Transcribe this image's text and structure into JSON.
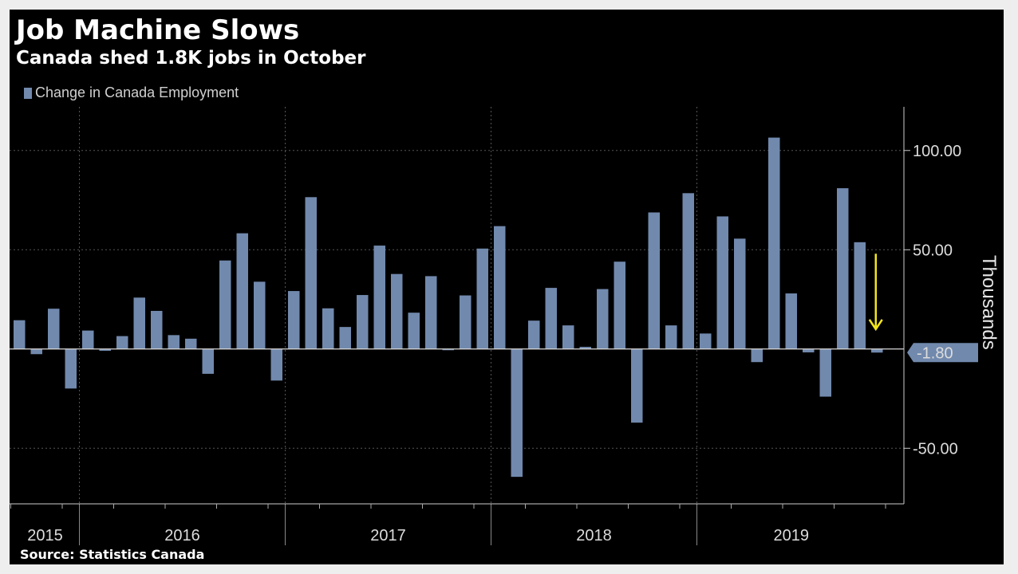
{
  "title": "Job Machine Slows",
  "subtitle": "Canada shed 1.8K jobs in October",
  "source": "Source: Statistics Canada",
  "colors": {
    "bar": "#7189ad",
    "background": "#000000",
    "grid": "#555555",
    "arrow": "#f2e51c",
    "text": "#dcdcdc"
  },
  "chart_data": {
    "type": "bar",
    "ylabel": "Thousands",
    "ylim": [
      -78,
      122
    ],
    "yticks": [
      {
        "value": 100,
        "label": "100.00"
      },
      {
        "value": 50,
        "label": "50.00"
      },
      {
        "value": -50,
        "label": "-50.00"
      }
    ],
    "grid": true,
    "legend_position": "top-left",
    "series": [
      {
        "name": "Change in Canada Employment",
        "values": [
          14.5,
          -2.6,
          20.3,
          -19.9,
          9.3,
          -0.9,
          6.5,
          25.9,
          19.2,
          7.0,
          5.2,
          -12.5,
          44.6,
          58.3,
          33.9,
          -15.9,
          29.2,
          76.5,
          20.5,
          11.1,
          27.2,
          52.1,
          37.8,
          18.3,
          36.7,
          -0.2,
          27.0,
          50.6,
          61.9,
          -64.4,
          14.3,
          30.8,
          11.9,
          1.1,
          30.2,
          44.0,
          -37.1,
          68.8,
          11.9,
          78.5,
          7.8,
          66.8,
          55.6,
          -6.6,
          106.5,
          28.0,
          -1.7,
          -24.0,
          81.0,
          53.8,
          -1.8
        ]
      }
    ],
    "x_year_labels": [
      "2015",
      "2016",
      "2017",
      "2018",
      "2019"
    ],
    "last_value_label": "-1.80"
  }
}
